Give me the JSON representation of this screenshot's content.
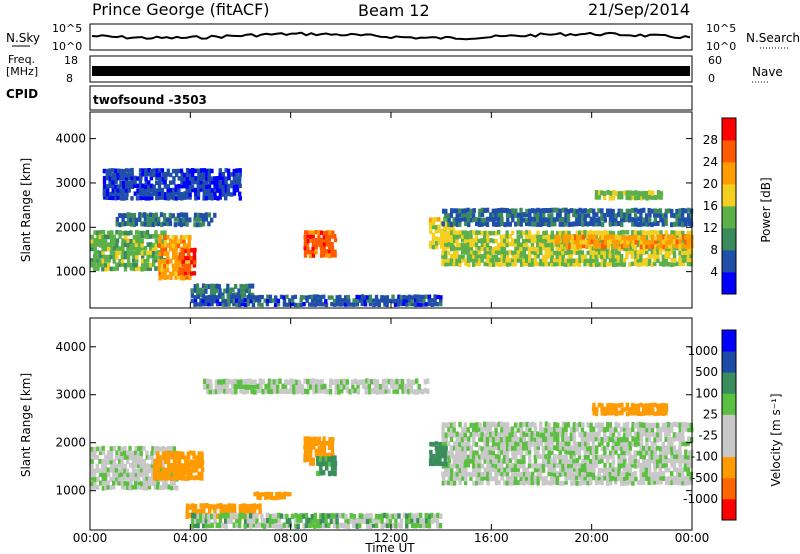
{
  "header": {
    "station": "Prince George (fitACF)",
    "beam": "Beam 12",
    "date": "21/Sep/2014"
  },
  "noise_panel": {
    "left_label": "N.Sky",
    "left_ticks": [
      "10^5",
      "10^0"
    ],
    "right_ticks": [
      "10^5",
      "10^0"
    ],
    "right_label": "N.Search"
  },
  "freq_panel": {
    "left_label_1": "Freq.",
    "left_label_2": "[MHz]",
    "left_ticks": [
      "18",
      "8"
    ],
    "right_ticks": [
      "60",
      "0"
    ],
    "right_label": "Nave"
  },
  "cpid": {
    "label": "CPID",
    "value": "twofsound -3503"
  },
  "colors": {
    "power_scale": [
      "#0000ff",
      "#1f4fa8",
      "#3b8a5c",
      "#5cb04a",
      "#f3d020",
      "#ff9d00",
      "#ff5a00",
      "#ff0000"
    ],
    "velocity_scale": [
      "#ff0000",
      "#ff6600",
      "#ff9a00",
      "#c8c8c8",
      "#c8c8c8",
      "#5bc040",
      "#3a8e5e",
      "#1e4aa8",
      "#0000ff"
    ]
  },
  "chart_data": [
    {
      "type": "heatmap",
      "name": "power",
      "ylabel": "Slant Range [km]",
      "ylim": [
        180,
        4600
      ],
      "yticks": [
        1000,
        2000,
        3000,
        4000
      ],
      "xlabel": "Time UT",
      "xticks": [
        "00:00",
        "04:00",
        "08:00",
        "12:00",
        "16:00",
        "20:00",
        "00:00"
      ],
      "xlim_hours": [
        0,
        24
      ],
      "colorbar": {
        "label": "Power [dB]",
        "ticks": [
          "4",
          "8",
          "12",
          "16",
          "20",
          "24",
          "28"
        ],
        "range": [
          0,
          30
        ]
      },
      "bands": [
        {
          "t": [
            0.0,
            3.0
          ],
          "r": [
            1000,
            1900
          ],
          "v": 14
        },
        {
          "t": [
            2.7,
            4.0
          ],
          "r": [
            800,
            1800
          ],
          "v": 22
        },
        {
          "t": [
            3.5,
            4.2
          ],
          "r": [
            900,
            1500
          ],
          "v": 27
        },
        {
          "t": [
            4.0,
            6.5
          ],
          "r": [
            400,
            700
          ],
          "v": 9
        },
        {
          "t": [
            8.5,
            9.8
          ],
          "r": [
            1300,
            1900
          ],
          "v": 26
        },
        {
          "t": [
            1.0,
            5.0
          ],
          "r": [
            2000,
            2300
          ],
          "v": 8
        },
        {
          "t": [
            0.5,
            6.0
          ],
          "r": [
            2600,
            3300
          ],
          "v": 5
        },
        {
          "t": [
            13.5,
            14.5
          ],
          "r": [
            1500,
            2200
          ],
          "v": 18
        },
        {
          "t": [
            14.0,
            24.0
          ],
          "r": [
            1100,
            1900
          ],
          "v": 16
        },
        {
          "t": [
            18.5,
            24.0
          ],
          "r": [
            1500,
            1800
          ],
          "v": 22
        },
        {
          "t": [
            14.0,
            24.0
          ],
          "r": [
            2000,
            2400
          ],
          "v": 7
        },
        {
          "t": [
            20.0,
            22.8
          ],
          "r": [
            2600,
            2800
          ],
          "v": 15
        },
        {
          "t": [
            4.0,
            14.0
          ],
          "r": [
            200,
            450
          ],
          "v": 6
        }
      ]
    },
    {
      "type": "heatmap",
      "name": "velocity",
      "ylabel": "Slant Range [km]",
      "ylim": [
        180,
        4600
      ],
      "yticks": [
        1000,
        2000,
        3000,
        4000
      ],
      "xlabel": "Time UT",
      "xticks": [
        "00:00",
        "04:00",
        "08:00",
        "12:00",
        "16:00",
        "20:00",
        "00:00"
      ],
      "xlim_hours": [
        0,
        24
      ],
      "colorbar": {
        "label": "Velocity [m s⁻¹]",
        "ticks": [
          "1000",
          "500",
          "100",
          "25",
          "-25",
          "-100",
          "-500",
          "-1000"
        ]
      },
      "bands": [
        {
          "t": [
            0.0,
            3.5
          ],
          "r": [
            1000,
            1900
          ],
          "v": 0
        },
        {
          "t": [
            2.5,
            4.5
          ],
          "r": [
            1200,
            1800
          ],
          "v": -300
        },
        {
          "t": [
            3.8,
            6.8
          ],
          "r": [
            400,
            700
          ],
          "v": -400
        },
        {
          "t": [
            6.5,
            8.0
          ],
          "r": [
            800,
            950
          ],
          "v": -400
        },
        {
          "t": [
            8.5,
            9.7
          ],
          "r": [
            1500,
            2100
          ],
          "v": -300
        },
        {
          "t": [
            9.0,
            9.8
          ],
          "r": [
            1300,
            1700
          ],
          "v": 150
        },
        {
          "t": [
            14.0,
            24.0
          ],
          "r": [
            1100,
            2000
          ],
          "v": 0
        },
        {
          "t": [
            14.0,
            24.0
          ],
          "r": [
            2000,
            2400
          ],
          "v": 0
        },
        {
          "t": [
            13.5,
            14.2
          ],
          "r": [
            1500,
            2000
          ],
          "v": 200
        },
        {
          "t": [
            20.0,
            23.0
          ],
          "r": [
            2550,
            2800
          ],
          "v": -200
        },
        {
          "t": [
            4.5,
            13.5
          ],
          "r": [
            3000,
            3300
          ],
          "v": 0
        },
        {
          "t": [
            4.0,
            14.0
          ],
          "r": [
            200,
            500
          ],
          "v": 50
        }
      ]
    }
  ]
}
